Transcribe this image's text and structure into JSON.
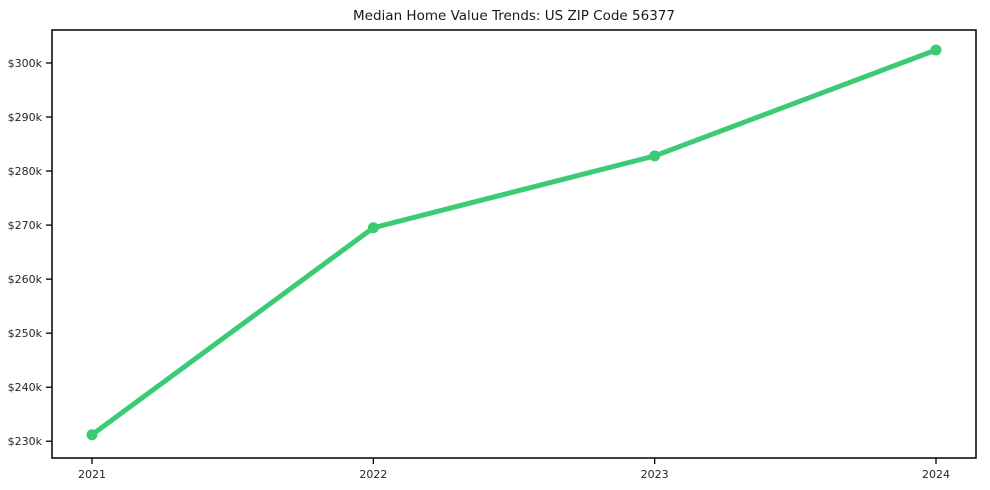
{
  "title": "Median Home Value Trends: US ZIP Code 56377",
  "colors": {
    "line": "#3acb74",
    "marker": "#3acb74",
    "frame": "#000000",
    "tick_text": "#262626",
    "background": "#ffffff"
  },
  "chart_data": {
    "type": "line",
    "title": "Median Home Value Trends: US ZIP Code 56377",
    "xlabel": "",
    "ylabel": "",
    "x": [
      2021,
      2022,
      2023,
      2024
    ],
    "x_tick_labels": [
      "2021",
      "2022",
      "2023",
      "2024"
    ],
    "series": [
      {
        "name": "Median Home Value",
        "values": [
          231200,
          269500,
          282800,
          302400
        ]
      }
    ],
    "y_tick_values": [
      230000,
      240000,
      250000,
      260000,
      270000,
      280000,
      290000,
      300000
    ],
    "y_tick_labels": [
      "$230k",
      "$240k",
      "$250k",
      "$260k",
      "$270k",
      "$280k",
      "$290k",
      "$300k"
    ],
    "ylim": [
      226900,
      306100
    ],
    "grid": false,
    "legend": "none",
    "marker": "circle",
    "line_width": 5,
    "marker_radius": 5.5
  }
}
